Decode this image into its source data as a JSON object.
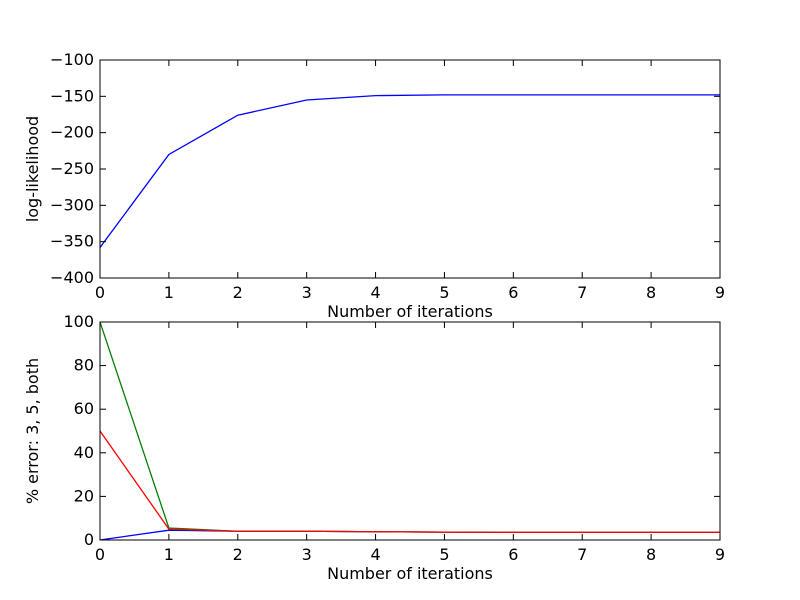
{
  "chart_data": [
    {
      "type": "line",
      "title": "",
      "xlabel": "Number of iterations",
      "ylabel": "log-likelihood",
      "xlim": [
        0,
        9
      ],
      "ylim": [
        -400,
        -100
      ],
      "xticks": [
        0,
        1,
        2,
        3,
        4,
        5,
        6,
        7,
        8,
        9
      ],
      "yticks": [
        -400,
        -350,
        -300,
        -250,
        -200,
        -150,
        -100
      ],
      "ytick_labels": [
        "−400",
        "−350",
        "−300",
        "−250",
        "−200",
        "−150",
        "−100"
      ],
      "grid": false,
      "series": [
        {
          "color": "#0000ff",
          "x": [
            0,
            1,
            2,
            3,
            4,
            5,
            6,
            7,
            8,
            9
          ],
          "y": [
            -358,
            -230,
            -176,
            -155,
            -149,
            -148,
            -148,
            -148,
            -148,
            -148
          ]
        }
      ]
    },
    {
      "type": "line",
      "title": "",
      "xlabel": "Number of iterations",
      "ylabel": "% error: 3, 5, both",
      "xlim": [
        0,
        9
      ],
      "ylim": [
        0,
        100
      ],
      "xticks": [
        0,
        1,
        2,
        3,
        4,
        5,
        6,
        7,
        8,
        9
      ],
      "yticks": [
        0,
        20,
        40,
        60,
        80,
        100
      ],
      "ytick_labels": [
        "0",
        "20",
        "40",
        "60",
        "80",
        "100"
      ],
      "grid": false,
      "series": [
        {
          "color": "#0000ff",
          "x": [
            0,
            1,
            2,
            3,
            4,
            5,
            6,
            7,
            8,
            9
          ],
          "y": [
            0,
            4.5,
            4.0,
            4.0,
            3.8,
            3.6,
            3.5,
            3.5,
            3.5,
            3.5
          ]
        },
        {
          "color": "#008000",
          "x": [
            0,
            1,
            2,
            3,
            4,
            5,
            6,
            7,
            8,
            9
          ],
          "y": [
            100,
            5.5,
            4.0,
            4.0,
            3.8,
            3.6,
            3.5,
            3.5,
            3.5,
            3.5
          ]
        },
        {
          "color": "#ff0000",
          "x": [
            0,
            1,
            2,
            3,
            4,
            5,
            6,
            7,
            8,
            9
          ],
          "y": [
            50,
            5.0,
            4.0,
            4.0,
            3.8,
            3.6,
            3.5,
            3.5,
            3.5,
            3.5
          ]
        }
      ]
    }
  ]
}
